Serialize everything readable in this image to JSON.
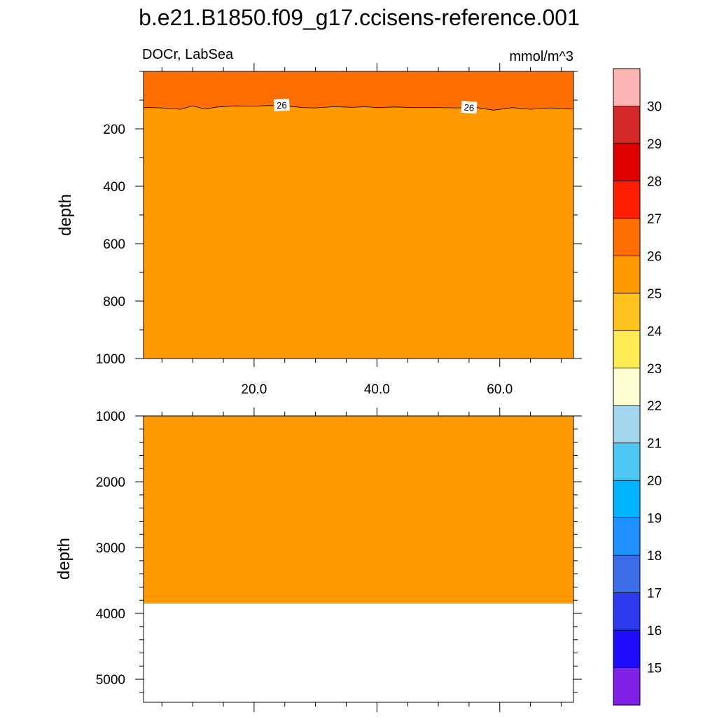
{
  "title": "b.e21.B1850.f09_g17.ccisens-reference.001",
  "left_label": "DOCr, LabSea",
  "right_label": "mmol/m^3",
  "chart_data": [
    {
      "type": "heatmap",
      "panel": "upper",
      "ylabel": "depth",
      "xlim": [
        2,
        72
      ],
      "ylim": [
        1000,
        0
      ],
      "x_ticks": [
        20,
        40,
        60
      ],
      "x_tick_labels": [
        "20.0",
        "40.0",
        "60.0"
      ],
      "y_ticks": [
        200,
        400,
        600,
        800,
        1000
      ],
      "y_tick_labels": [
        "200",
        "400",
        "600",
        "800",
        "1000"
      ],
      "regions": [
        {
          "range": "26-27",
          "color": "#ff6e00",
          "depth_top": 0,
          "depth_bottom": "contour_26"
        },
        {
          "range": "25-26",
          "color": "#ff9900",
          "depth_top": "contour_26",
          "depth_bottom": 1000
        }
      ],
      "contour_26": {
        "level": 26,
        "x": [
          2,
          5,
          8,
          10,
          12,
          14,
          17,
          20,
          22,
          25,
          28,
          30,
          33,
          36,
          38,
          40,
          43,
          46,
          50,
          53,
          56,
          59,
          62,
          65,
          68,
          72
        ],
        "depth": [
          125,
          127,
          132,
          120,
          131,
          124,
          120,
          121,
          119,
          120,
          126,
          127,
          123,
          125,
          123,
          126,
          124,
          126,
          126,
          127,
          125,
          135,
          126,
          132,
          127,
          131
        ]
      },
      "contour_labels": [
        {
          "text": "26",
          "x": 24.5,
          "depth": 118
        },
        {
          "text": "26",
          "x": 55,
          "depth": 126
        }
      ]
    },
    {
      "type": "heatmap",
      "panel": "lower",
      "ylabel": "depth",
      "xlim": [
        2,
        72
      ],
      "ylim": [
        5350,
        1000
      ],
      "y_ticks": [
        1000,
        2000,
        3000,
        4000,
        5000
      ],
      "y_tick_labels": [
        "1000",
        "2000",
        "3000",
        "4000",
        "5000"
      ],
      "regions": [
        {
          "range": "25-26",
          "color": "#ff9900",
          "depth_top": 1000,
          "depth_bottom": 3850
        },
        {
          "range": "missing",
          "color": "#ffffff",
          "depth_top": 3850,
          "depth_bottom": 5350
        }
      ]
    }
  ],
  "colorbar": {
    "colors": [
      "#8021e8",
      "#1e0cfa",
      "#2a3bed",
      "#3c6de6",
      "#1e90ff",
      "#00b3ff",
      "#4dc8f5",
      "#a3d7ef",
      "#ffffd2",
      "#ffeb55",
      "#ffc31e",
      "#ff9900",
      "#ff6e00",
      "#ff1e00",
      "#e10000",
      "#d22828",
      "#ffb4b4"
    ],
    "labels": [
      "15",
      "16",
      "17",
      "18",
      "19",
      "20",
      "21",
      "22",
      "23",
      "24",
      "25",
      "26",
      "27",
      "28",
      "29",
      "30"
    ]
  }
}
